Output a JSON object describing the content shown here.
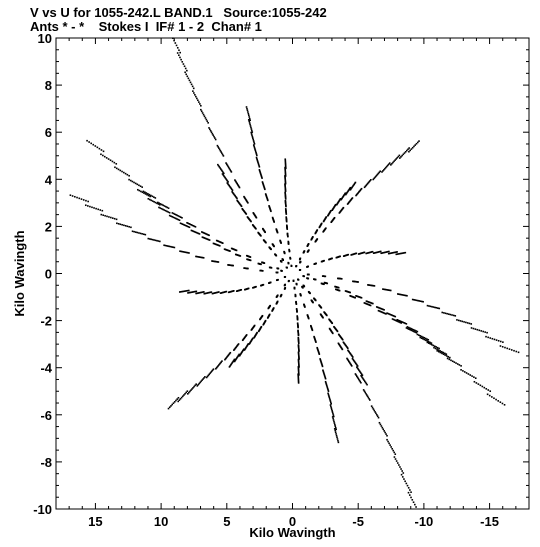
{
  "header": {
    "line1": "V vs U for 1055-242.L BAND.1   Source:1055-242",
    "line2": "Ants * - *    Stokes I  IF# 1 - 2  Chan# 1"
  },
  "chart_data": {
    "type": "scatter",
    "title": "V vs U for 1055-242.L BAND.1   Source:1055-242",
    "subtitle": "Ants * - *    Stokes I  IF# 1 - 2  Chan# 1",
    "xlabel": "Kilo Wavingth",
    "ylabel": "Kilo Wavingth",
    "xlim": [
      18,
      -18
    ],
    "ylim": [
      -10,
      10
    ],
    "x_reversed": true,
    "xticks": [
      15,
      10,
      5,
      0,
      -5,
      -10,
      -15
    ],
    "xtick_labels": [
      "15",
      "10",
      "5",
      "0",
      "-5",
      "-10",
      "-15"
    ],
    "yticks": [
      -10,
      -8,
      -6,
      -4,
      -2,
      0,
      2,
      4,
      6,
      8,
      10
    ],
    "ytick_labels": [
      "-10",
      "-8",
      "-6",
      "-4",
      "-2",
      "0",
      "2",
      "4",
      "6",
      "8",
      "10"
    ],
    "grid": false,
    "marker_color": "#000000",
    "baselines": [
      {
        "u": -10.3,
        "v": -9.4
      },
      {
        "u": 10.0,
        "v": 9.5
      },
      {
        "u": -9.2,
        "v": 6.3
      },
      {
        "u": 9.0,
        "v": -6.4
      },
      {
        "u": 17.1,
        "v": 2.1
      },
      {
        "u": -17.4,
        "v": -2.1
      },
      {
        "u": 16.0,
        "v": 4.5
      },
      {
        "u": -16.5,
        "v": -4.4
      },
      {
        "u": 0.9,
        "v": 4.8
      },
      {
        "u": -0.8,
        "v": -4.6
      },
      {
        "u": 6.0,
        "v": 4.2
      },
      {
        "u": -6.0,
        "v": -4.3
      },
      {
        "u": -4.5,
        "v": 4.2
      },
      {
        "u": 4.5,
        "v": -4.3
      },
      {
        "u": 12.0,
        "v": 2.7
      },
      {
        "u": -12.2,
        "v": -2.7
      },
      {
        "u": 4.0,
        "v": 6.8
      },
      {
        "u": -4.0,
        "v": -6.9
      },
      {
        "u": -8.5,
        "v": 1.5
      },
      {
        "u": 8.5,
        "v": -1.4
      }
    ]
  }
}
